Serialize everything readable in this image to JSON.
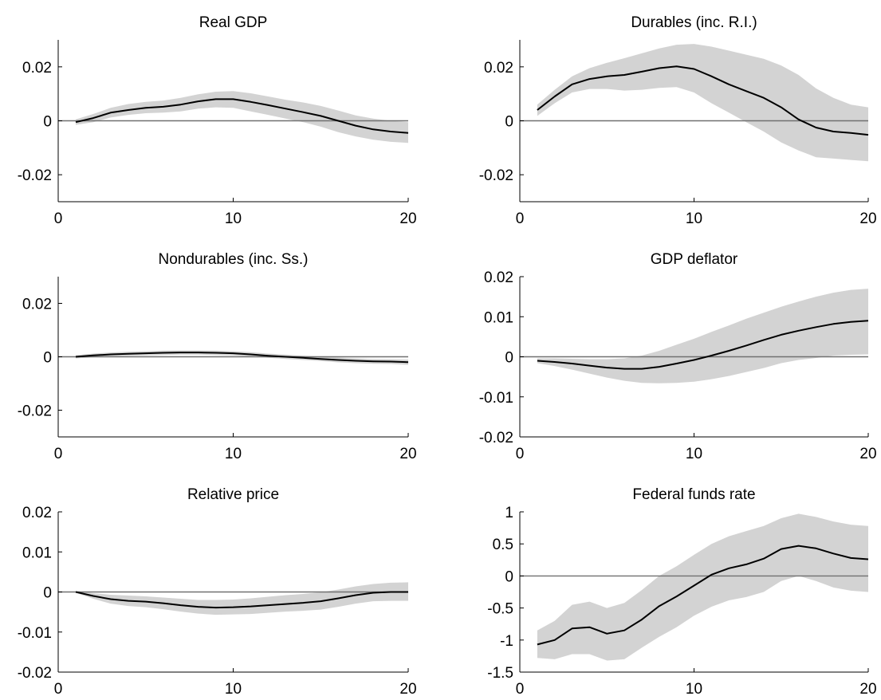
{
  "figure": {
    "background": "#ffffff",
    "band_color": "#d3d3d3",
    "line_color": "#000000",
    "zero_line_color": "#707070"
  },
  "chart_data": [
    {
      "type": "line",
      "title": "Real GDP",
      "xlabel": "",
      "ylabel": "",
      "xlim": [
        0,
        20
      ],
      "ylim": [
        -0.03,
        0.03
      ],
      "xticks": [
        0,
        10,
        20
      ],
      "xtick_labels": [
        "0",
        "10",
        "20"
      ],
      "yticks": [
        -0.02,
        0,
        0.02
      ],
      "ytick_labels": [
        "-0.02",
        "0",
        "0.02"
      ],
      "zero_line": true,
      "grid": false,
      "x": [
        1,
        2,
        3,
        4,
        5,
        6,
        7,
        8,
        9,
        10,
        11,
        12,
        13,
        14,
        15,
        16,
        17,
        18,
        19,
        20
      ],
      "series": [
        {
          "role": "median",
          "values": [
            -0.0005,
            0.001,
            0.003,
            0.004,
            0.0048,
            0.0052,
            0.006,
            0.0072,
            0.008,
            0.008,
            0.007,
            0.0058,
            0.0045,
            0.0032,
            0.0018,
            0,
            -0.0018,
            -0.0032,
            -0.004,
            -0.0045
          ]
        },
        {
          "role": "band_upper",
          "values": [
            0.0005,
            0.0025,
            0.0048,
            0.0062,
            0.007,
            0.0075,
            0.0085,
            0.0098,
            0.0108,
            0.011,
            0.0102,
            0.009,
            0.0078,
            0.0068,
            0.0055,
            0.0038,
            0.002,
            0.0008,
            0,
            -0.0005
          ]
        },
        {
          "role": "band_lower",
          "values": [
            -0.0015,
            -0.0005,
            0.0012,
            0.0022,
            0.0028,
            0.003,
            0.0035,
            0.0045,
            0.005,
            0.0048,
            0.0035,
            0.0022,
            0.0008,
            -0.0005,
            -0.0022,
            -0.0042,
            -0.0058,
            -0.007,
            -0.0078,
            -0.0082
          ]
        }
      ]
    },
    {
      "type": "line",
      "title": "Durables (inc. R.I.)",
      "xlabel": "",
      "ylabel": "",
      "xlim": [
        0,
        20
      ],
      "ylim": [
        -0.03,
        0.03
      ],
      "xticks": [
        0,
        10,
        20
      ],
      "xtick_labels": [
        "0",
        "10",
        "20"
      ],
      "yticks": [
        -0.02,
        0,
        0.02
      ],
      "ytick_labels": [
        "-0.02",
        "0",
        "0.02"
      ],
      "zero_line": true,
      "grid": false,
      "x": [
        1,
        2,
        3,
        4,
        5,
        6,
        7,
        8,
        9,
        10,
        11,
        12,
        13,
        14,
        15,
        16,
        17,
        18,
        19,
        20
      ],
      "series": [
        {
          "role": "median",
          "values": [
            0.004,
            0.009,
            0.0135,
            0.0155,
            0.0165,
            0.017,
            0.0182,
            0.0195,
            0.0202,
            0.0192,
            0.0165,
            0.0135,
            0.011,
            0.0085,
            0.005,
            0.0005,
            -0.0025,
            -0.004,
            -0.0045,
            -0.0052
          ]
        },
        {
          "role": "band_upper",
          "values": [
            0.006,
            0.0115,
            0.0165,
            0.0195,
            0.0215,
            0.0232,
            0.025,
            0.0268,
            0.0282,
            0.0285,
            0.0275,
            0.026,
            0.0245,
            0.023,
            0.0205,
            0.017,
            0.012,
            0.0085,
            0.006,
            0.005
          ]
        },
        {
          "role": "band_lower",
          "values": [
            0.0018,
            0.0065,
            0.0105,
            0.0118,
            0.0118,
            0.0112,
            0.0115,
            0.0122,
            0.0125,
            0.0105,
            0.0065,
            0.003,
            -0.0005,
            -0.004,
            -0.008,
            -0.011,
            -0.0135,
            -0.014,
            -0.0145,
            -0.015
          ]
        }
      ]
    },
    {
      "type": "line",
      "title": "Nondurables (inc. Ss.)",
      "xlabel": "",
      "ylabel": "",
      "xlim": [
        0,
        20
      ],
      "ylim": [
        -0.03,
        0.03
      ],
      "xticks": [
        0,
        10,
        20
      ],
      "xtick_labels": [
        "0",
        "10",
        "20"
      ],
      "yticks": [
        -0.02,
        0,
        0.02
      ],
      "ytick_labels": [
        "-0.02",
        "0",
        "0.02"
      ],
      "zero_line": true,
      "grid": false,
      "x": [
        1,
        2,
        3,
        4,
        5,
        6,
        7,
        8,
        9,
        10,
        11,
        12,
        13,
        14,
        15,
        16,
        17,
        18,
        19,
        20
      ],
      "series": [
        {
          "role": "median",
          "values": [
            0,
            0.0005,
            0.0009,
            0.0011,
            0.0013,
            0.0015,
            0.0016,
            0.0016,
            0.0015,
            0.0013,
            0.0009,
            0.0004,
            0,
            -0.0004,
            -0.0008,
            -0.0012,
            -0.0015,
            -0.0017,
            -0.0018,
            -0.002
          ]
        },
        {
          "role": "band_upper",
          "values": [
            0.0006,
            0.0012,
            0.0016,
            0.0019,
            0.0021,
            0.0023,
            0.0024,
            0.0024,
            0.0023,
            0.0021,
            0.0017,
            0.0012,
            0.0008,
            0.0004,
            0,
            -0.0003,
            -0.0006,
            -0.0008,
            -0.0009,
            -0.001
          ]
        },
        {
          "role": "band_lower",
          "values": [
            -0.0006,
            -0.0002,
            0.0002,
            0.0004,
            0.0005,
            0.0007,
            0.0008,
            0.0008,
            0.0007,
            0.0005,
            0.0001,
            -0.0004,
            -0.0008,
            -0.0012,
            -0.0016,
            -0.0021,
            -0.0024,
            -0.0026,
            -0.0027,
            -0.003
          ]
        }
      ]
    },
    {
      "type": "line",
      "title": "GDP deflator",
      "xlabel": "",
      "ylabel": "",
      "xlim": [
        0,
        20
      ],
      "ylim": [
        -0.02,
        0.02
      ],
      "xticks": [
        0,
        10,
        20
      ],
      "xtick_labels": [
        "0",
        "10",
        "20"
      ],
      "yticks": [
        -0.02,
        -0.01,
        0,
        0.01,
        0.02
      ],
      "ytick_labels": [
        "-0.02",
        "-0.01",
        "0",
        "0.01",
        "0.02"
      ],
      "zero_line": true,
      "grid": false,
      "x": [
        1,
        2,
        3,
        4,
        5,
        6,
        7,
        8,
        9,
        10,
        11,
        12,
        13,
        14,
        15,
        16,
        17,
        18,
        19,
        20
      ],
      "series": [
        {
          "role": "median",
          "values": [
            -0.001,
            -0.0013,
            -0.0017,
            -0.0022,
            -0.0027,
            -0.003,
            -0.003,
            -0.0025,
            -0.0017,
            -0.0008,
            0.0003,
            0.0015,
            0.0028,
            0.0042,
            0.0055,
            0.0065,
            0.0074,
            0.0082,
            0.0087,
            0.009
          ]
        },
        {
          "role": "band_upper",
          "values": [
            -0.0004,
            -0.0004,
            -0.0005,
            -0.0006,
            -0.0006,
            -0.0004,
            0.0003,
            0.0015,
            0.003,
            0.0045,
            0.0062,
            0.0078,
            0.0095,
            0.011,
            0.0125,
            0.0138,
            0.015,
            0.016,
            0.0167,
            0.017
          ]
        },
        {
          "role": "band_lower",
          "values": [
            -0.0016,
            -0.0023,
            -0.0032,
            -0.0042,
            -0.0052,
            -0.006,
            -0.0065,
            -0.0066,
            -0.0065,
            -0.0062,
            -0.0056,
            -0.0048,
            -0.0038,
            -0.0028,
            -0.0016,
            -0.0008,
            -0.0003,
            0.0003,
            0.0005,
            0.0006
          ]
        }
      ]
    },
    {
      "type": "line",
      "title": "Relative price",
      "xlabel": "",
      "ylabel": "",
      "xlim": [
        0,
        20
      ],
      "ylim": [
        -0.02,
        0.02
      ],
      "xticks": [
        0,
        10,
        20
      ],
      "xtick_labels": [
        "0",
        "10",
        "20"
      ],
      "yticks": [
        -0.02,
        -0.01,
        0,
        0.01,
        0.02
      ],
      "ytick_labels": [
        "-0.02",
        "-0.01",
        "0",
        "0.01",
        "0.02"
      ],
      "zero_line": true,
      "grid": false,
      "x": [
        1,
        2,
        3,
        4,
        5,
        6,
        7,
        8,
        9,
        10,
        11,
        12,
        13,
        14,
        15,
        16,
        17,
        18,
        19,
        20
      ],
      "series": [
        {
          "role": "median",
          "values": [
            0,
            -0.001,
            -0.0018,
            -0.0022,
            -0.0024,
            -0.0028,
            -0.0033,
            -0.0037,
            -0.0039,
            -0.0038,
            -0.0036,
            -0.0033,
            -0.003,
            -0.0027,
            -0.0023,
            -0.0016,
            -0.0008,
            -0.0002,
            0,
            0
          ]
        },
        {
          "role": "band_upper",
          "values": [
            0.0002,
            -0.0003,
            -0.0007,
            -0.0009,
            -0.0011,
            -0.0014,
            -0.0017,
            -0.002,
            -0.002,
            -0.0019,
            -0.0016,
            -0.0012,
            -0.0008,
            -0.0005,
            -0.0001,
            0.0006,
            0.0014,
            0.002,
            0.0023,
            0.0024
          ]
        },
        {
          "role": "band_lower",
          "values": [
            -0.0002,
            -0.0017,
            -0.0029,
            -0.0035,
            -0.0038,
            -0.0043,
            -0.0049,
            -0.0054,
            -0.0057,
            -0.0056,
            -0.0055,
            -0.0052,
            -0.0049,
            -0.0047,
            -0.0044,
            -0.0037,
            -0.0029,
            -0.0023,
            -0.0022,
            -0.0022
          ]
        }
      ]
    },
    {
      "type": "line",
      "title": "Federal funds rate",
      "xlabel": "",
      "ylabel": "",
      "xlim": [
        0,
        20
      ],
      "ylim": [
        -1.5,
        1
      ],
      "xticks": [
        0,
        10,
        20
      ],
      "xtick_labels": [
        "0",
        "10",
        "20"
      ],
      "yticks": [
        -1.5,
        -1,
        -0.5,
        0,
        0.5,
        1
      ],
      "ytick_labels": [
        "-1.5",
        "-1",
        "-0.5",
        "0",
        "0.5",
        "1"
      ],
      "zero_line": true,
      "grid": false,
      "x": [
        1,
        2,
        3,
        4,
        5,
        6,
        7,
        8,
        9,
        10,
        11,
        12,
        13,
        14,
        15,
        16,
        17,
        18,
        19,
        20
      ],
      "series": [
        {
          "role": "median",
          "values": [
            -1.07,
            -1.0,
            -0.82,
            -0.8,
            -0.9,
            -0.85,
            -0.68,
            -0.47,
            -0.32,
            -0.15,
            0.02,
            0.12,
            0.18,
            0.27,
            0.42,
            0.47,
            0.43,
            0.35,
            0.28,
            0.26
          ]
        },
        {
          "role": "band_upper",
          "values": [
            -0.85,
            -0.7,
            -0.45,
            -0.4,
            -0.5,
            -0.42,
            -0.22,
            0.0,
            0.15,
            0.33,
            0.5,
            0.62,
            0.7,
            0.78,
            0.9,
            0.97,
            0.92,
            0.85,
            0.8,
            0.78
          ]
        },
        {
          "role": "band_lower",
          "values": [
            -1.28,
            -1.3,
            -1.22,
            -1.22,
            -1.32,
            -1.3,
            -1.12,
            -0.95,
            -0.8,
            -0.62,
            -0.48,
            -0.38,
            -0.33,
            -0.25,
            -0.08,
            0.0,
            -0.08,
            -0.18,
            -0.23,
            -0.25
          ]
        }
      ]
    }
  ]
}
